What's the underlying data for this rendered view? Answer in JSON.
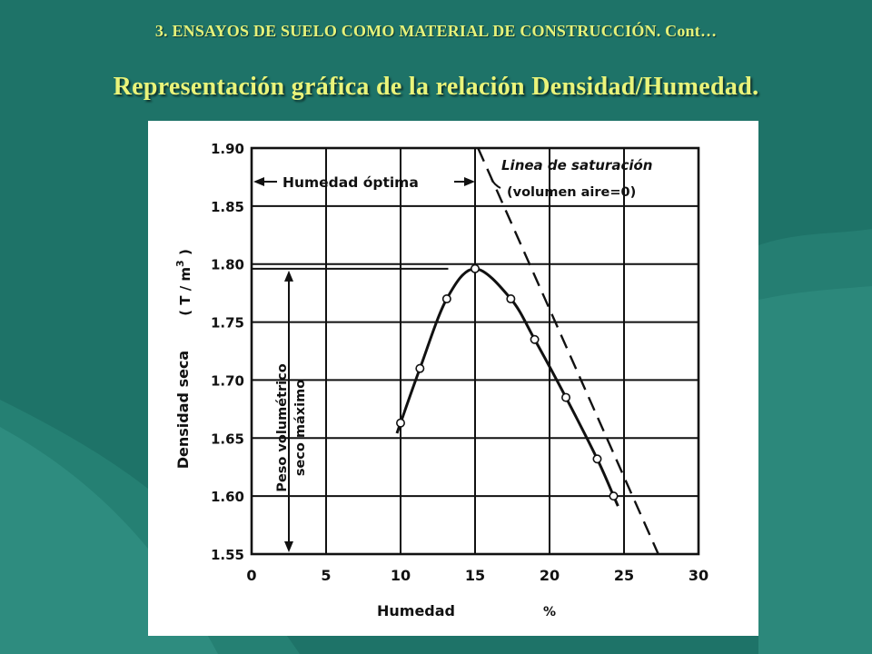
{
  "slide": {
    "header": "3.  ENSAYOS DE SUELO COMO MATERIAL DE CONSTRUCCIÓN. Cont…",
    "title": "Representación gráfica de la relación Densidad/Humedad."
  },
  "colors": {
    "background": "#1e7368",
    "title_text": "#eaf47a",
    "figure_background": "#ffffff",
    "ink": "#111111"
  },
  "chart_data": {
    "type": "line",
    "title": "",
    "xlabel": "Humedad",
    "xlabel_unit": "%",
    "ylabel": "Densidad seca",
    "ylabel_unit": "( T / m",
    "ylabel_unit_power": "3",
    "ylabel_unit_close": " )",
    "xlim": [
      0,
      30
    ],
    "ylim": [
      1.55,
      1.9
    ],
    "x_ticks": [
      0,
      5,
      10,
      15,
      20,
      25,
      30
    ],
    "x_tick_labels": [
      "0",
      "5",
      "10",
      "15",
      "20",
      "25",
      "30"
    ],
    "y_ticks": [
      1.55,
      1.6,
      1.65,
      1.7,
      1.75,
      1.8,
      1.85,
      1.9
    ],
    "y_tick_labels": [
      "1.55",
      "1.60",
      "1.65",
      "1.70",
      "1.75",
      "1.80",
      "1.85",
      "1.90"
    ],
    "grid": true,
    "series": [
      {
        "style": "solid",
        "with_markers": true,
        "points": [
          {
            "x": 10.0,
            "y": 1.663
          },
          {
            "x": 11.3,
            "y": 1.71
          },
          {
            "x": 13.1,
            "y": 1.77
          },
          {
            "x": 15.0,
            "y": 1.796
          },
          {
            "x": 17.4,
            "y": 1.77
          },
          {
            "x": 19.0,
            "y": 1.735
          },
          {
            "x": 21.1,
            "y": 1.685
          },
          {
            "x": 23.2,
            "y": 1.632
          },
          {
            "x": 24.3,
            "y": 1.6
          }
        ]
      },
      {
        "style": "dashed",
        "with_markers": false,
        "points": [
          {
            "x": 15.2,
            "y": 1.9
          },
          {
            "x": 27.3,
            "y": 1.55
          }
        ]
      }
    ],
    "annotations": {
      "humedad_optima": "Humedad óptima",
      "saturacion_line1": "Linea de saturación",
      "saturacion_line2": "(volumen aire=0)",
      "peso_line1": "Peso volumétrico",
      "peso_line2": "seco máximo",
      "optimum_moisture_x": 15.0,
      "max_dry_density_y": 1.796
    }
  }
}
